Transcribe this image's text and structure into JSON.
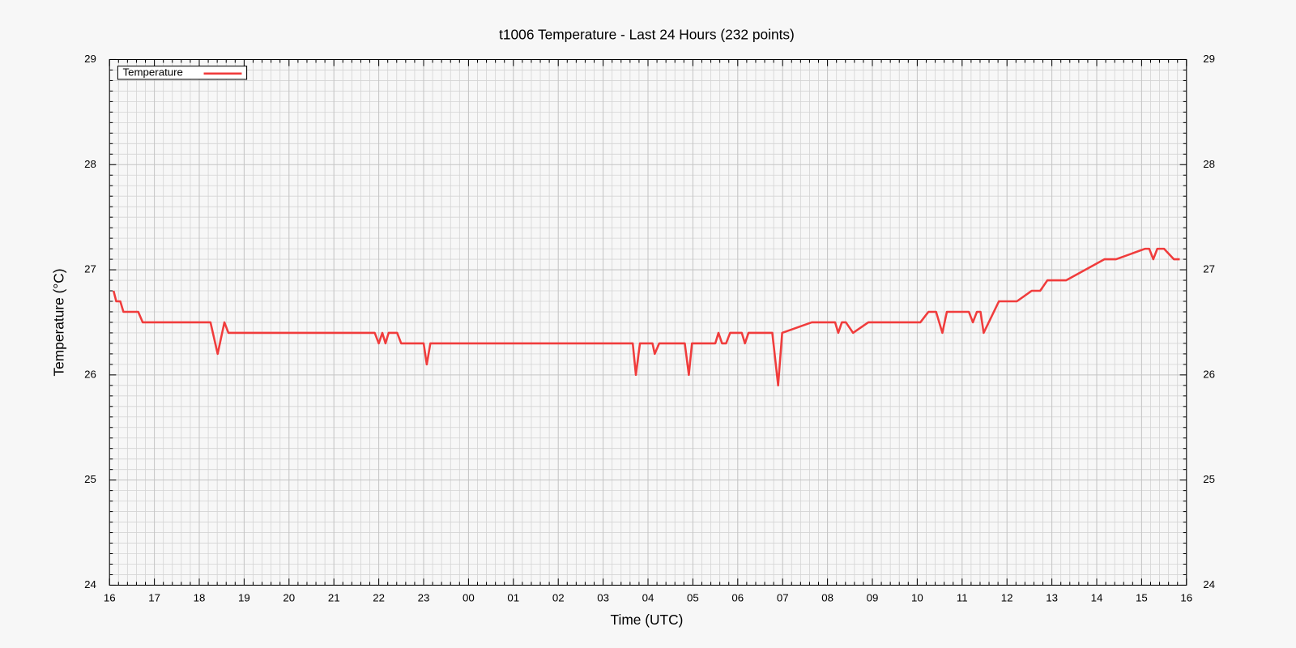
{
  "chart_data": {
    "type": "line",
    "title": "t1006 Temperature - Last 24 Hours (232 points)",
    "xlabel": "Time (UTC)",
    "ylabel": "Temperature (°C)",
    "xlim": [
      16,
      40
    ],
    "xticks": [
      16,
      17,
      18,
      19,
      20,
      21,
      22,
      23,
      {
        "value": 24,
        "label": "00"
      },
      {
        "value": 25,
        "label": "01"
      },
      {
        "value": 26,
        "label": "02"
      },
      {
        "value": 27,
        "label": "03"
      },
      {
        "value": 28,
        "label": "04"
      },
      {
        "value": 29,
        "label": "05"
      },
      {
        "value": 30,
        "label": "06"
      },
      {
        "value": 31,
        "label": "07"
      },
      {
        "value": 32,
        "label": "08"
      },
      {
        "value": 33,
        "label": "09"
      },
      {
        "value": 34,
        "label": "10"
      },
      {
        "value": 35,
        "label": "11"
      },
      {
        "value": 36,
        "label": "12"
      },
      {
        "value": 37,
        "label": "13"
      },
      {
        "value": 38,
        "label": "14"
      },
      {
        "value": 39,
        "label": "15"
      },
      {
        "value": 40,
        "label": "16"
      }
    ],
    "ylim": [
      24,
      29
    ],
    "yticks": [
      24,
      25,
      26,
      27,
      28,
      29
    ],
    "y2lim": [
      24,
      29
    ],
    "y2ticks": [
      24,
      25,
      26,
      27,
      28,
      29
    ],
    "x_minor": 5,
    "y_minor": 10,
    "grid": true,
    "legend": "top-left",
    "x": [
      16.09,
      16.15,
      16.24,
      16.31,
      16.64,
      16.74,
      18.25,
      18.41,
      18.56,
      18.65,
      21.91,
      22.0,
      22.08,
      22.15,
      22.22,
      22.41,
      22.5,
      23.0,
      23.07,
      23.15,
      27.66,
      27.73,
      27.82,
      28.1,
      28.15,
      28.25,
      28.82,
      28.91,
      28.98,
      29.5,
      29.57,
      29.65,
      29.74,
      29.83,
      30.09,
      30.16,
      30.24,
      30.77,
      30.9,
      30.99,
      31.65,
      32.17,
      32.24,
      32.32,
      32.41,
      32.57,
      32.91,
      34.07,
      34.25,
      34.42,
      34.56,
      34.66,
      35.15,
      35.24,
      35.33,
      35.41,
      35.48,
      35.82,
      36.22,
      36.55,
      36.74,
      36.9,
      37.32,
      38.17,
      38.43,
      39.08,
      39.17,
      39.26,
      39.35,
      39.5,
      39.72,
      39.85
    ],
    "series": [
      {
        "name": "Temperature",
        "color": "#f03c3c",
        "values": [
          26.8,
          26.7,
          26.7,
          26.6,
          26.6,
          26.5,
          26.5,
          26.2,
          26.5,
          26.4,
          26.4,
          26.3,
          26.4,
          26.3,
          26.4,
          26.4,
          26.3,
          26.3,
          26.1,
          26.3,
          26.3,
          26.0,
          26.3,
          26.3,
          26.2,
          26.3,
          26.3,
          26.0,
          26.3,
          26.3,
          26.4,
          26.3,
          26.3,
          26.4,
          26.4,
          26.3,
          26.4,
          26.4,
          25.9,
          26.4,
          26.5,
          26.5,
          26.4,
          26.5,
          26.5,
          26.4,
          26.5,
          26.5,
          26.6,
          26.6,
          26.4,
          26.6,
          26.6,
          26.5,
          26.6,
          26.6,
          26.4,
          26.7,
          26.7,
          26.8,
          26.8,
          26.9,
          26.9,
          27.1,
          27.1,
          27.2,
          27.2,
          27.1,
          27.2,
          27.2,
          27.1,
          27.1
        ]
      }
    ]
  }
}
